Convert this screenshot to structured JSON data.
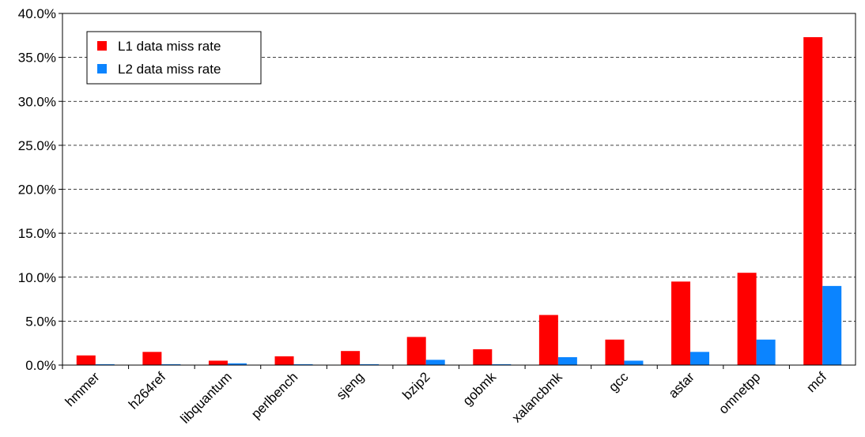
{
  "chart_data": {
    "type": "bar",
    "categories": [
      "hmmer",
      "h264ref",
      "libquantum",
      "perlbench",
      "sjeng",
      "bzip2",
      "gobmk",
      "xalancbmk",
      "gcc",
      "astar",
      "omnetpp",
      "mcf"
    ],
    "series": [
      {
        "name": "L1 data miss rate",
        "color": "#ff0000",
        "values": [
          1.1,
          1.5,
          0.5,
          1.0,
          1.6,
          3.2,
          1.8,
          5.7,
          2.9,
          9.5,
          10.5,
          37.3
        ]
      },
      {
        "name": "L2 data miss rate",
        "color": "#0b84ff",
        "values": [
          0.1,
          0.1,
          0.2,
          0.1,
          0.1,
          0.6,
          0.1,
          0.9,
          0.5,
          1.5,
          2.9,
          9.0
        ]
      }
    ],
    "y_ticks": [
      "0.0%",
      "5.0%",
      "10.0%",
      "15.0%",
      "20.0%",
      "25.0%",
      "30.0%",
      "35.0%",
      "40.0%"
    ],
    "ylim": [
      0,
      40
    ],
    "title": "",
    "xlabel": "",
    "ylabel": "",
    "grid": "horizontal dashed",
    "legend_position": "top-left"
  }
}
